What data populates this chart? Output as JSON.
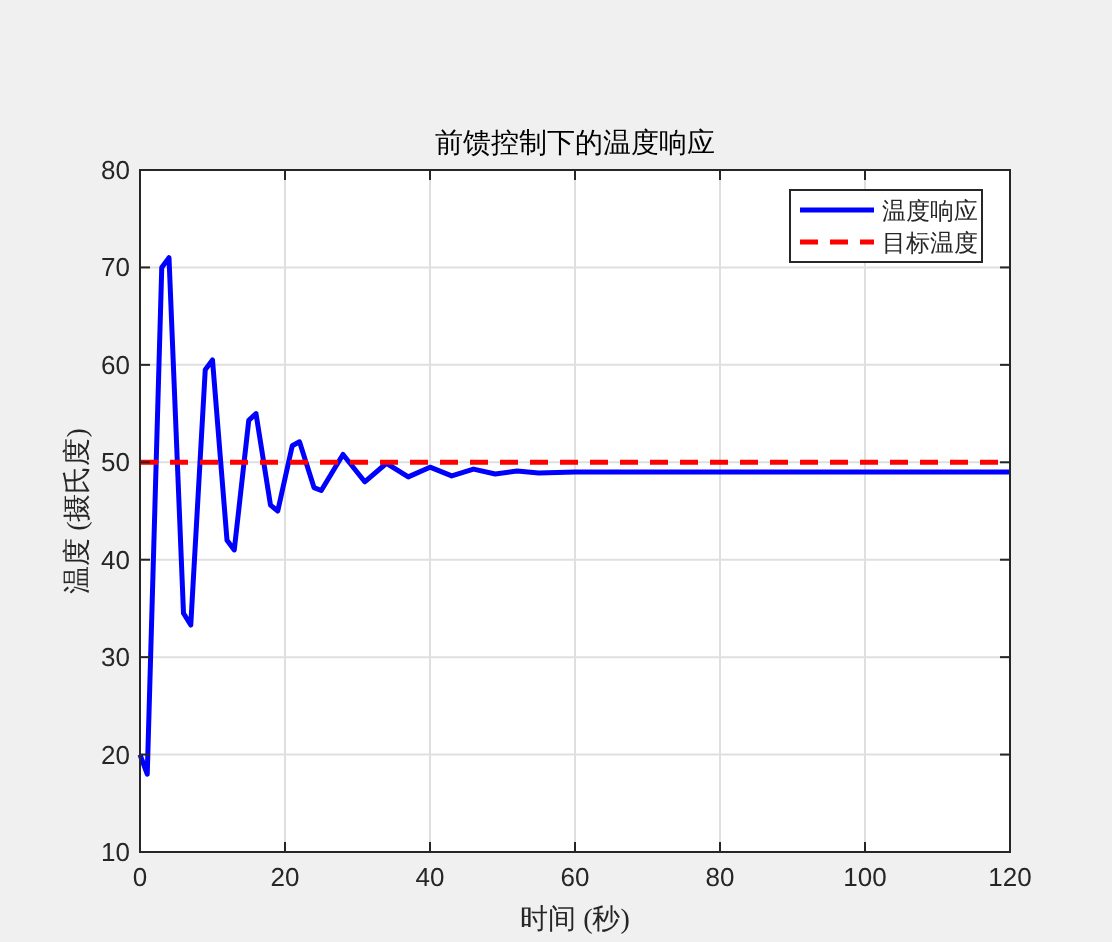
{
  "chart_data": {
    "type": "line",
    "title": "前馈控制下的温度响应",
    "xlabel": "时间 (秒)",
    "ylabel": "温度 (摄氏度)",
    "xlim": [
      0,
      120
    ],
    "ylim": [
      10,
      80
    ],
    "xticks": [
      0,
      20,
      40,
      60,
      80,
      100,
      120
    ],
    "yticks": [
      10,
      20,
      30,
      40,
      50,
      60,
      70,
      80
    ],
    "grid": true,
    "legend": "top right",
    "series": [
      {
        "name": "温度响应",
        "color": "#0000ff",
        "line_style": "solid",
        "x": [
          0,
          1,
          3,
          4,
          6,
          7,
          9,
          10,
          12,
          13,
          15,
          16,
          18,
          19,
          21,
          22,
          24,
          25,
          28,
          31,
          34,
          37,
          40,
          43,
          46,
          49,
          52,
          55,
          60,
          120
        ],
        "values": [
          20,
          18,
          70,
          71,
          34.5,
          33.3,
          59.5,
          60.5,
          42,
          41,
          54.3,
          55,
          45.6,
          45,
          51.7,
          52.1,
          47.4,
          47.1,
          50.8,
          48,
          49.9,
          48.5,
          49.5,
          48.6,
          49.3,
          48.8,
          49.1,
          48.9,
          49,
          49
        ]
      },
      {
        "name": "目标温度",
        "color": "#ff0000",
        "line_style": "dashed",
        "x": [
          0,
          120
        ],
        "values": [
          50,
          50
        ]
      }
    ]
  }
}
